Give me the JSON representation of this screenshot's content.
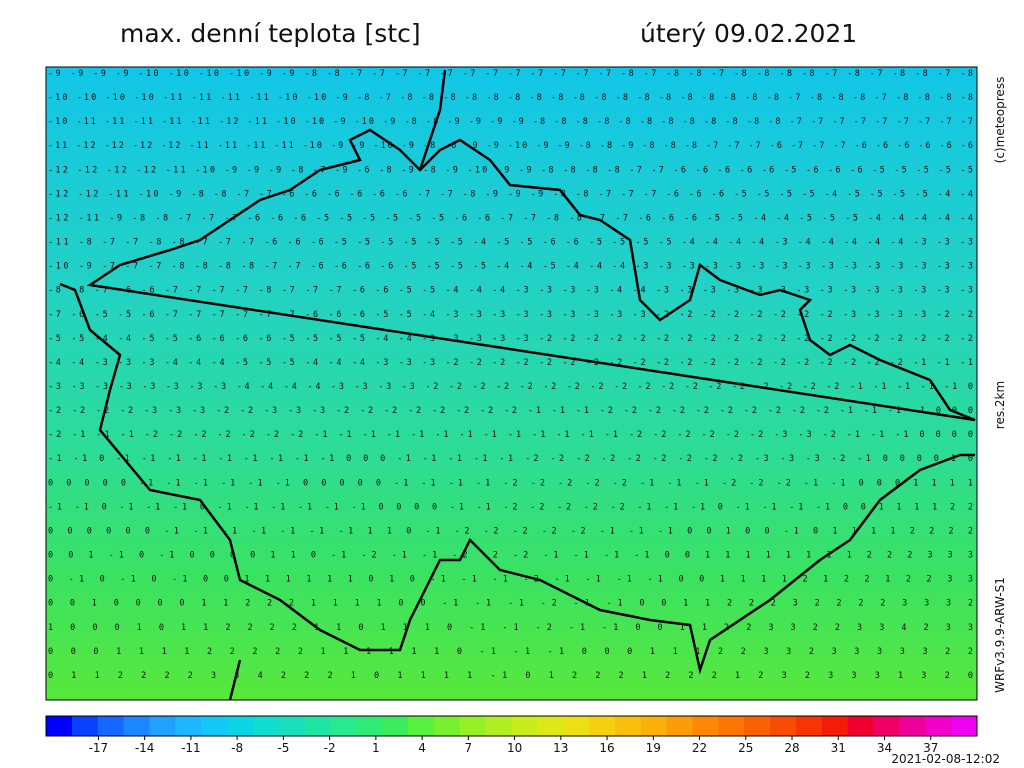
{
  "header": {
    "title": "max. denní teplota [stc]",
    "date": "úterý 09.02.2021"
  },
  "side": {
    "copyright": "(c)meteopress",
    "resolution": "res.2km",
    "model": "WRFv3.9.9-ARW-S1"
  },
  "footer": {
    "timestamp": "2021-02-08-12:02"
  },
  "grid": [
    "-9 -9 -9 -9 -10 -10 -10 -10 -9 -9 -8 -8 -7 -7 -7 -7 -7 -7 -7 -7 -7 -7 -7 -7 -8 -7 -8 -8 -7 -8 -8 -8 -8 -7 -8 -7 -8 -8 -7 -8",
    "-10 -10 -10 -10 -11 -11 -11 -11 -10 -10 -9 -8 -7 -8 -8 -8 -8 -8 -8 -8 -8 -8 -8 -8 -8 -8 -8 -8 -8 -8 -8 -7 -8 -8 -8 -7 -8 -8 -8 -8",
    "-10 -11 -11 -11 -11 -11 -12 -11 -10 -10 -9 -10 -9 -8 -8 -9 -9 -9 -9 -8 -8 -8 -8 -8 -8 -8 -8 -8 -8 -8 -8 -7 -7 -7 -7 -7 -7 -7 -7 -7",
    "-11 -12 -12 -12 -12 -11 -11 -11 -11 -10 -9 -9 -10 -9 -8 -8 -9 -9 -10 -9 -9 -8 -8 -9 -8 -8 -8 -7 -7 -7 -6 -7 -7 -7 -6 -6 -6 -6 -6 -6",
    "-12 -12 -12 -12 -11 -10 -9 -9 -9 -8 -7 -9 -6 -8 -9 -8 -9 -10 -9 -9 -8 -8 -8 -8 -7 -7 -6 -6 -6 -6 -6 -5 -6 -6 -6 -5 -5 -5 -5 -5",
    "-12 -12 -11 -10 -9 -8 -8 -7 -7 -6 -6 -6 -6 -6 -6 -7 -7 -8 -9 -9 -9 -8 -8 -7 -7 -7 -6 -6 -6 -5 -5 -5 -5 -4 -5 -5 -5 -5 -4 -4",
    "-12 -11 -9 -8 -8 -7 -7 -7 -6 -6 -6 -5 -5 -5 -5 -5 -5 -6 -6 -7 -7 -8 -8 -7 -7 -6 -6 -6 -5 -5 -4 -4 -5 -5 -5 -4 -4 -4 -4 -4",
    "-11 -8 -7 -7 -8 -8 -7 -7 -7 -6 -6 -6 -5 -5 -5 -5 -5 -5 -4 -5 -5 -6 -6 -5 -5 -5 -5 -4 -4 -4 -4 -3 -4 -4 -4 -4 -4 -3 -3 -3",
    "-10 -9 -7 -7 -7 -8 -8 -8 -8 -7 -7 -6 -6 -6 -6 -5 -5 -5 -5 -4 -4 -5 -4 -4 -4 -3 -3 -3 -3 -3 -3 -3 -3 -3 -3 -3 -3 -3 -3 -3",
    "-8 -8 -7 -6 -6 -7 -7 -7 -7 -8 -7 -7 -7 -6 -6 -5 -5 -4 -4 -4 -3 -3 -3 -3 -4 -4 -3 -3 -3 -3 -3 -3 -3 -3 -3 -3 -3 -3 -3 -3",
    "-7 -6 -5 -5 -6 -7 -7 -7 -7 -7 -7 -6 -6 -6 -5 -5 -4 -3 -3 -3 -3 -3 -3 -3 -3 -3 -2 -2 -2 -2 -2 -2 -2 -2 -3 -3 -3 -3 -2 -2",
    "-5 -5 -4 -4 -5 -5 -6 -6 -6 -6 -5 -5 -5 -5 -4 -4 -3 -3 -3 -3 -3 -2 -2 -2 -2 -2 -2 -2 -2 -2 -2 -2 -2 -2 -2 -2 -2 -2 -2 -2",
    "-4 -4 -3 -3 -3 -4 -4 -4 -5 -5 -5 -4 -4 -4 -3 -3 -3 -2 -2 -2 -2 -2 -2 -2 -2 -2 -2 -2 -2 -2 -2 -2 -2 -2 -2 -2 -2 -1 -1 -1",
    "-3 -3 -3 -3 -3 -3 -3 -3 -4 -4 -4 -4 -3 -3 -3 -3 -2 -2 -2 -2 -2 -2 -2 -2 -2 -2 -2 -2 -2 -2 -2 -2 -2 -2 -1 -1 -1 -1 -1 0",
    "-2 -2 -2 -2 -3 -3 -3 -2 -2 -3 -3 -3 -2 -2 -2 -2 -2 -2 -2 -2 -1 -1 -1 -2 -2 -2 -2 -2 -2 -2 -2 -2 -2 -1 -1 -1 -1 0 0 0",
    "-2 -1 -1 -1 -2 -2 -2 -2 -2 -2 -2 -1 -1 -1 -1 -1 -1 -1 -1 -1 -1 -1 -1 -1 -2 -2 -2 -2 -2 -2 -3 -3 -2 -1 -1 -1 0 0 0 0",
    "-1 -1 0 -1 -1 -1 -1 -1 -1 -1 -1 -1 0 0 0 -1 -1 -1 -1 -1 -2 -2 -2 -2 -2 -2 -2 -2 -2 -3 -3 -3 -2 -1 0 0 0 0 1 0",
    "0 0 0 0 0 -1 -1 -1 -1 -1 -1 0 0 0 0 0 -1 -1 -1 -1 -2 -2 -2 -2 -2 -1 -1 -1 -2 -2 -2 -1 -1 0 0 0 1 1 1 1",
    "-1 -1 0 -1 -1 -1 0 -1 -1 -1 -1 -1 -1 0 0 0 0 -1 -1 -2 -2 -2 -2 -2 -1 -1 -1 0 -1 -1 -1 -1 0 0 1 1 1 1 2 2",
    "0 0 0 0 0 0 -1 -1 -1 -1 -1 -1 -1 1 1 0 -1 -2 -2 -2 -2 -2 -1 -1 -1 0 0 1 0 0 -1 0 1 1 1 1 2 2 2 2",
    "0 0 1 -1 0 -1 0 0 0 0 1 1 0 -1 -2 -1 -1 -2 -2 -2 -1 -1 -1 -1 0 0 1 1 1 1 1 1 1 1 2 2 2 3 3 3",
    "0 -1 0 -1 0 -1 0 0 1 1 1 1 1 1 0 1 0 -1 -1 -1 -2 -1 -1 -1 -1 0 0 1 1 1 1 2 1 2 2 1 2 2 3 3",
    "0 0 1 0 0 0 0 1 1 2 2 2 1 1 1 1 0 0 -1 -1 -1 -2 -1 -1 0 0 1 1 2 2 2 3 2 2 2 2 3 3 3 2",
    "1 0 0 0 1 0 1 1 2 2 2 2 1 1 0 1 1 1 0 -1 -1 -2 -1 -1 0 0 1 1 2 2 3 3 2 2 3 3 4 2 3 3",
    "0 0 0 1 1 1 1 2 2 2 2 2 1 1 1 1 1 1 0 -1 -1 -1 0 0 0 1 1 1 2 2 3 3 2 3 3 3 3 3 2 2",
    "0 1 1 2 2 2 2 3 3 4 2 2 2 1 0 1 1 1 1 -1 0 1 2 2 2 1 2 2 2 1 2 3 2 3 3 3 1 3 2 0"
  ],
  "colorbar": {
    "range": [
      -20.4,
      40
    ],
    "ticks": [
      -17,
      -14,
      -11,
      -8,
      -5,
      -2,
      1,
      4,
      7,
      10,
      13,
      16,
      19,
      22,
      25,
      28,
      31,
      34,
      37
    ],
    "colors": [
      "#0000ff",
      "#0a40ff",
      "#1467ff",
      "#1c86ff",
      "#20a0ff",
      "#1eb6ff",
      "#12c8f4",
      "#0cd4e4",
      "#10dcd0",
      "#18e0bc",
      "#20e4a4",
      "#28e890",
      "#30ea78",
      "#3cec5c",
      "#5af040",
      "#78f030",
      "#96f028",
      "#b0ee22",
      "#c8ec1c",
      "#dce818",
      "#ece014",
      "#f4d010",
      "#f8c00c",
      "#fcae0a",
      "#fc9c08",
      "#fc8806",
      "#fc7404",
      "#fa6004",
      "#f84c04",
      "#f63404",
      "#f41c08",
      "#f0002c",
      "#f00064",
      "#f0009a",
      "#f000c8",
      "#f000f0"
    ]
  }
}
